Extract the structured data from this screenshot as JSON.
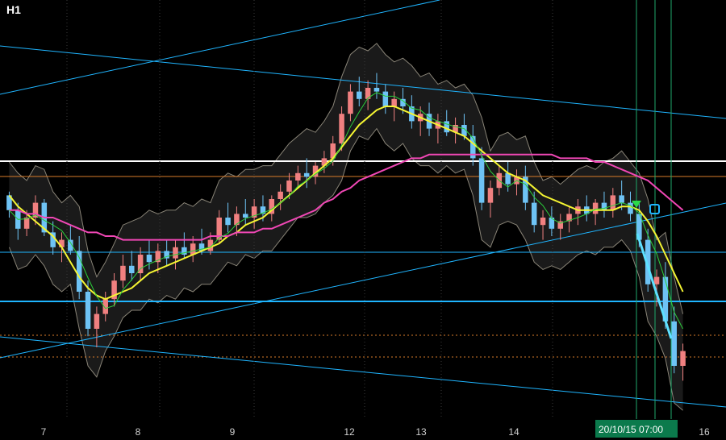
{
  "app": {
    "timeframe": "H1"
  },
  "chart_data": {
    "type": "candlestick",
    "timeframe": "H1",
    "ylim": [
      0,
      100
    ],
    "x_tick_labels": [
      "7",
      "8",
      "9",
      "12",
      "13",
      "14",
      "16"
    ],
    "highlighted_labels": [
      "20/10/15",
      "07:00"
    ],
    "colors": {
      "candle_up": "#f08080",
      "candle_down": "#6ec3f5",
      "ma_fast": "#f5f532",
      "ma_slow": "#f047b5",
      "ma_short": "#2bcf3a",
      "bollinger": "#bfb8a5",
      "trend_lines": "#1fb5ff",
      "support_level": "#ffffff",
      "orange_levels": "#d97c2a",
      "event_lines": "#1fa86b",
      "arrow_marker": "#2bd94a",
      "highlight_label_bg": "#0b7a4c"
    },
    "candles": [
      [
        56,
        57,
        50,
        52
      ],
      [
        52,
        54,
        44,
        47
      ],
      [
        47,
        52,
        45,
        50
      ],
      [
        50,
        56,
        48,
        54
      ],
      [
        54,
        55,
        45,
        46
      ],
      [
        46,
        49,
        40,
        42
      ],
      [
        42,
        46,
        38,
        44
      ],
      [
        44,
        48,
        40,
        41
      ],
      [
        41,
        45,
        28,
        30
      ],
      [
        30,
        33,
        18,
        20
      ],
      [
        20,
        26,
        15,
        24
      ],
      [
        24,
        30,
        22,
        28
      ],
      [
        28,
        35,
        26,
        33
      ],
      [
        33,
        40,
        31,
        37
      ],
      [
        37,
        41,
        33,
        35
      ],
      [
        35,
        42,
        33,
        40
      ],
      [
        40,
        44,
        36,
        38
      ],
      [
        38,
        43,
        35,
        41
      ],
      [
        41,
        44,
        37,
        39
      ],
      [
        39,
        44,
        36,
        42
      ],
      [
        42,
        46,
        39,
        40
      ],
      [
        40,
        45,
        38,
        43
      ],
      [
        43,
        47,
        40,
        41
      ],
      [
        41,
        46,
        40,
        44
      ],
      [
        44,
        52,
        43,
        50
      ],
      [
        50,
        54,
        46,
        48
      ],
      [
        48,
        53,
        45,
        51
      ],
      [
        51,
        55,
        48,
        50
      ],
      [
        50,
        55,
        47,
        53
      ],
      [
        53,
        56,
        49,
        51
      ],
      [
        51,
        56,
        49,
        55
      ],
      [
        55,
        59,
        52,
        57
      ],
      [
        57,
        62,
        55,
        60
      ],
      [
        60,
        64,
        58,
        62
      ],
      [
        62,
        66,
        58,
        61
      ],
      [
        61,
        65,
        59,
        64
      ],
      [
        64,
        68,
        62,
        66
      ],
      [
        66,
        72,
        64,
        70
      ],
      [
        70,
        80,
        68,
        78
      ],
      [
        78,
        86,
        76,
        84
      ],
      [
        84,
        88,
        80,
        82
      ],
      [
        82,
        87,
        79,
        85
      ],
      [
        85,
        89,
        82,
        84
      ],
      [
        84,
        86,
        78,
        80
      ],
      [
        80,
        84,
        76,
        82
      ],
      [
        82,
        85,
        78,
        80
      ],
      [
        80,
        83,
        74,
        76
      ],
      [
        76,
        80,
        72,
        78
      ],
      [
        78,
        81,
        72,
        74
      ],
      [
        74,
        78,
        70,
        76
      ],
      [
        76,
        79,
        72,
        73
      ],
      [
        73,
        77,
        70,
        75
      ],
      [
        75,
        78,
        71,
        72
      ],
      [
        72,
        75,
        64,
        66
      ],
      [
        66,
        69,
        52,
        54
      ],
      [
        54,
        60,
        50,
        58
      ],
      [
        58,
        64,
        56,
        62
      ],
      [
        62,
        65,
        57,
        59
      ],
      [
        59,
        63,
        56,
        61
      ],
      [
        61,
        64,
        52,
        54
      ],
      [
        54,
        57,
        46,
        48
      ],
      [
        48,
        52,
        44,
        50
      ],
      [
        50,
        53,
        45,
        47
      ],
      [
        47,
        51,
        44,
        49
      ],
      [
        49,
        53,
        46,
        51
      ],
      [
        51,
        55,
        48,
        53
      ],
      [
        53,
        56,
        49,
        51
      ],
      [
        51,
        55,
        48,
        54
      ],
      [
        54,
        57,
        50,
        52
      ],
      [
        52,
        58,
        50,
        56
      ],
      [
        56,
        60,
        52,
        54
      ],
      [
        54,
        57,
        49,
        51
      ],
      [
        51,
        54,
        42,
        44
      ],
      [
        44,
        47,
        30,
        32
      ],
      [
        32,
        36,
        26,
        34
      ],
      [
        34,
        38,
        20,
        22
      ],
      [
        22,
        26,
        8,
        10
      ],
      [
        10,
        16,
        6,
        14
      ]
    ],
    "series": [
      {
        "name": "",
        "values": [
          56,
          53,
          51,
          49,
          47,
          45,
          42,
          38,
          34,
          31,
          29,
          28,
          29,
          30,
          31,
          33,
          35,
          36,
          37,
          38,
          39,
          40,
          41,
          42,
          43,
          45,
          46,
          48,
          49,
          50,
          52,
          54,
          56,
          58,
          60,
          62,
          64,
          66,
          69,
          72,
          75,
          77,
          79,
          80,
          80,
          79,
          78,
          77,
          76,
          75,
          74,
          73,
          72,
          70,
          68,
          66,
          64,
          62,
          61,
          60,
          58,
          56,
          55,
          54,
          53,
          52,
          52,
          52,
          52,
          52,
          53,
          53,
          52,
          49,
          45,
          40,
          35,
          30
        ]
      },
      {
        "name": "",
        "values": [
          52,
          52,
          51,
          51,
          50,
          50,
          49,
          48,
          47,
          46,
          46,
          45,
          45,
          44,
          44,
          44,
          44,
          44,
          44,
          44,
          44,
          44,
          44,
          45,
          45,
          45,
          46,
          46,
          46,
          47,
          47,
          48,
          49,
          50,
          51,
          52,
          54,
          55,
          57,
          58,
          60,
          61,
          62,
          63,
          64,
          65,
          66,
          66,
          67,
          67,
          67,
          67,
          67,
          67,
          67,
          67,
          67,
          67,
          67,
          67,
          67,
          67,
          67,
          66,
          66,
          66,
          66,
          65,
          65,
          64,
          63,
          62,
          61,
          60,
          58,
          56,
          54,
          52
        ]
      }
    ]
  }
}
